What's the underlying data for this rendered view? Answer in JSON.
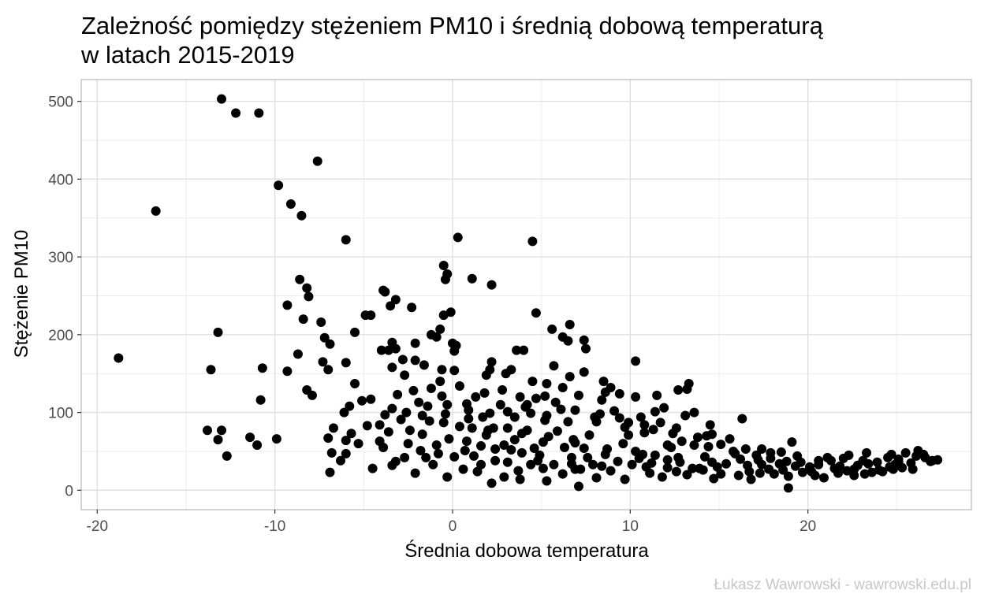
{
  "chart_data": {
    "type": "scatter",
    "title": "Zależność pomiędzy stężeniem PM10 i średnią dobową temperaturą",
    "title_line2": "w latach 2015-2019",
    "xlabel": "Średnia dobowa temperatura",
    "ylabel": "Stężenie PM10",
    "caption": "Łukasz Wawrowski - wawrowski.edu.pl",
    "xlim": [
      -20.9,
      29.2
    ],
    "ylim": [
      -25,
      528
    ],
    "x_ticks": [
      -20,
      -10,
      0,
      10,
      20
    ],
    "x_tick_labels": [
      "-20",
      "-10",
      "0",
      "10",
      "20"
    ],
    "y_ticks": [
      0,
      100,
      200,
      300,
      400,
      500
    ],
    "y_tick_labels": [
      "0",
      "100",
      "200",
      "300",
      "400",
      "500"
    ],
    "grid": true,
    "point_color": "#000000",
    "points": [
      [
        -13,
        503
      ],
      [
        -12.2,
        485
      ],
      [
        -10.9,
        485
      ],
      [
        -7.6,
        423
      ],
      [
        -16.7,
        359
      ],
      [
        -9.8,
        392
      ],
      [
        -9.1,
        368
      ],
      [
        -8.5,
        353
      ],
      [
        -6,
        322
      ],
      [
        -18.8,
        170
      ],
      [
        -13.2,
        203
      ],
      [
        -13.6,
        155
      ],
      [
        -10.7,
        157
      ],
      [
        -10.8,
        116
      ],
      [
        -13.8,
        77
      ],
      [
        -13,
        77
      ],
      [
        -13.2,
        65
      ],
      [
        -11.4,
        68
      ],
      [
        -11,
        58
      ],
      [
        -12.7,
        44
      ],
      [
        -9.9,
        66
      ],
      [
        -9.3,
        238
      ],
      [
        -8.6,
        271
      ],
      [
        -8.2,
        260
      ],
      [
        -8.1,
        249
      ],
      [
        -8.4,
        220
      ],
      [
        -8.7,
        175
      ],
      [
        -9.3,
        153
      ],
      [
        -8.2,
        129
      ],
      [
        -7.9,
        122
      ],
      [
        -7.4,
        216
      ],
      [
        -7.2,
        196
      ],
      [
        -6.9,
        188
      ],
      [
        -7.3,
        165
      ],
      [
        -7,
        155
      ],
      [
        -5.5,
        203
      ],
      [
        -6,
        164
      ],
      [
        -5.5,
        137
      ],
      [
        -7,
        67
      ],
      [
        -6.7,
        80
      ],
      [
        -6.8,
        48
      ],
      [
        -6.9,
        23
      ],
      [
        -5.8,
        108
      ],
      [
        -6.1,
        100
      ],
      [
        -6,
        64
      ],
      [
        -6,
        47
      ],
      [
        -6.3,
        38
      ],
      [
        -5.1,
        115
      ],
      [
        -4.6,
        117
      ],
      [
        -4.9,
        225
      ],
      [
        -4.6,
        225
      ],
      [
        -3.9,
        257
      ],
      [
        -3.8,
        255
      ],
      [
        -3.2,
        245
      ],
      [
        -3.5,
        237
      ],
      [
        -2.3,
        235
      ],
      [
        -2.1,
        189
      ],
      [
        -3.4,
        190
      ],
      [
        -4,
        180
      ],
      [
        -3.6,
        180
      ],
      [
        -3.2,
        182
      ],
      [
        -2.8,
        168
      ],
      [
        -3.4,
        158
      ],
      [
        -2.1,
        167
      ],
      [
        -1.6,
        161
      ],
      [
        -2.7,
        148
      ],
      [
        -3.1,
        123
      ],
      [
        -3.4,
        105
      ],
      [
        -3.8,
        97
      ],
      [
        -3.6,
        75
      ],
      [
        -4.1,
        63
      ],
      [
        -3.4,
        32
      ],
      [
        -3.2,
        37
      ],
      [
        -4.5,
        28
      ],
      [
        -4.8,
        83
      ],
      [
        -5.7,
        73
      ],
      [
        -2.5,
        60
      ],
      [
        -2.7,
        42
      ],
      [
        -2.1,
        22
      ],
      [
        0.3,
        325
      ],
      [
        -0.5,
        289
      ],
      [
        -0.3,
        278
      ],
      [
        -0.4,
        271
      ],
      [
        -0.1,
        229
      ],
      [
        -0.5,
        225
      ],
      [
        -0.7,
        207
      ],
      [
        -1.2,
        200
      ],
      [
        0,
        189
      ],
      [
        0.2,
        186
      ],
      [
        0.1,
        179
      ],
      [
        -0.9,
        197
      ],
      [
        -0.6,
        155
      ],
      [
        0.1,
        154
      ],
      [
        1.1,
        272
      ],
      [
        2.2,
        264
      ],
      [
        4.5,
        320
      ],
      [
        4.7,
        228
      ],
      [
        5.6,
        207
      ],
      [
        6.2,
        197
      ],
      [
        6.5,
        192
      ],
      [
        6.6,
        213
      ],
      [
        7.5,
        182
      ],
      [
        7.4,
        193
      ],
      [
        7.4,
        152
      ],
      [
        3.6,
        180
      ],
      [
        4,
        180
      ],
      [
        3.3,
        155
      ],
      [
        3,
        150
      ],
      [
        4.5,
        140
      ],
      [
        2.2,
        165
      ],
      [
        2.1,
        155
      ],
      [
        3.8,
        120
      ],
      [
        4.2,
        110
      ],
      [
        3.1,
        80
      ],
      [
        1.1,
        80
      ],
      [
        6.2,
        132
      ],
      [
        6.6,
        146
      ],
      [
        5.7,
        160
      ],
      [
        5.2,
        121
      ],
      [
        8.5,
        140
      ],
      [
        8.6,
        126
      ],
      [
        8.9,
        132
      ],
      [
        9.4,
        124
      ],
      [
        10.3,
        166
      ],
      [
        10.3,
        120
      ],
      [
        11.5,
        122
      ],
      [
        12.7,
        129
      ],
      [
        13.3,
        137
      ],
      [
        13.2,
        130
      ],
      [
        11.4,
        101
      ],
      [
        11.9,
        106
      ],
      [
        13.6,
        100
      ],
      [
        13.1,
        96
      ],
      [
        14.5,
        84
      ],
      [
        14.6,
        72
      ],
      [
        16.3,
        92
      ],
      [
        17.4,
        53
      ],
      [
        19.1,
        62
      ],
      [
        17.9,
        41
      ],
      [
        18.9,
        3
      ],
      [
        20.6,
        38
      ],
      [
        22,
        41
      ],
      [
        23.3,
        48
      ],
      [
        24,
        26
      ],
      [
        25.1,
        37
      ],
      [
        25.5,
        48
      ],
      [
        26.2,
        51
      ],
      [
        27.3,
        39
      ],
      [
        27,
        38
      ],
      [
        26.5,
        46
      ],
      [
        25.9,
        27
      ],
      [
        7.1,
        5
      ],
      [
        6.1,
        104
      ],
      [
        5.3,
        96
      ],
      [
        2,
        77
      ],
      [
        0.8,
        63
      ],
      [
        3.9,
        48
      ],
      [
        1.6,
        33
      ],
      [
        -0.8,
        47
      ],
      [
        8,
        94
      ],
      [
        9.7,
        81
      ],
      [
        10.8,
        74
      ],
      [
        12.1,
        58
      ],
      [
        15.8,
        50
      ],
      [
        14.2,
        43
      ],
      [
        20.1,
        29
      ],
      [
        22.8,
        32
      ],
      [
        17.3,
        22
      ],
      [
        12.3,
        55
      ],
      [
        12.6,
        24
      ],
      [
        5.2,
        90
      ],
      [
        4.6,
        54
      ],
      [
        6.8,
        65
      ],
      [
        3.1,
        36
      ],
      [
        9.6,
        60
      ],
      [
        -1.3,
        89
      ],
      [
        -1.4,
        108
      ],
      [
        -1.7,
        72
      ],
      [
        -2.9,
        91
      ],
      [
        1.9,
        71
      ],
      [
        1.4,
        24
      ],
      [
        2.9,
        17
      ],
      [
        0.9,
        103
      ],
      [
        4.4,
        99
      ],
      [
        7.6,
        42
      ],
      [
        6.7,
        42
      ],
      [
        11.2,
        35
      ],
      [
        13.9,
        28
      ],
      [
        10.3,
        50
      ],
      [
        16.6,
        32
      ],
      [
        18.4,
        34
      ],
      [
        19.7,
        23
      ],
      [
        21.5,
        28
      ],
      [
        15.1,
        21
      ],
      [
        23.9,
        36
      ],
      [
        24.6,
        30
      ],
      [
        6.9,
        27
      ],
      [
        5.7,
        33
      ],
      [
        3.5,
        65
      ],
      [
        1.2,
        44
      ],
      [
        0.6,
        27
      ],
      [
        -0.2,
        66
      ],
      [
        -0.3,
        110
      ],
      [
        -0.7,
        140
      ],
      [
        1.8,
        125
      ],
      [
        2.7,
        110
      ],
      [
        3.5,
        94
      ],
      [
        4.2,
        77
      ],
      [
        5.9,
        76
      ],
      [
        7.4,
        54
      ],
      [
        8.6,
        46
      ],
      [
        9.3,
        37
      ],
      [
        10.9,
        30
      ],
      [
        11.4,
        45
      ],
      [
        12.8,
        36
      ],
      [
        14.9,
        30
      ],
      [
        13.6,
        58
      ],
      [
        16.2,
        40
      ],
      [
        17.8,
        27
      ],
      [
        19.3,
        31
      ],
      [
        20.4,
        19
      ],
      [
        22.2,
        25
      ],
      [
        23.6,
        23
      ],
      [
        24.9,
        33
      ],
      [
        26.1,
        44
      ],
      [
        25.3,
        29
      ],
      [
        21.1,
        42
      ],
      [
        18.5,
        49
      ],
      [
        17.1,
        45
      ],
      [
        15.6,
        66
      ],
      [
        14.3,
        70
      ],
      [
        12.6,
        80
      ],
      [
        11.7,
        87
      ],
      [
        10.6,
        94
      ],
      [
        9.1,
        102
      ],
      [
        8.4,
        116
      ],
      [
        7.7,
        71
      ],
      [
        6.3,
        55
      ],
      [
        5.1,
        62
      ],
      [
        4.4,
        33
      ],
      [
        3.7,
        25
      ],
      [
        2.4,
        53
      ],
      [
        1.7,
        94
      ],
      [
        0.4,
        82
      ],
      [
        -0.9,
        58
      ],
      [
        -1.9,
        113
      ],
      [
        -2.4,
        77
      ],
      [
        -3.9,
        55
      ],
      [
        -5.3,
        60
      ],
      [
        -4.1,
        84
      ],
      [
        -1.1,
        33
      ],
      [
        -0.3,
        17
      ],
      [
        2.2,
        9
      ],
      [
        3.8,
        14
      ],
      [
        5.3,
        12
      ],
      [
        6.2,
        21
      ],
      [
        8.1,
        16
      ],
      [
        9.7,
        14
      ],
      [
        11.8,
        17
      ],
      [
        13.2,
        20
      ],
      [
        14.7,
        15
      ],
      [
        16.8,
        14
      ],
      [
        18.9,
        18
      ],
      [
        20.9,
        16
      ],
      [
        22.6,
        19
      ],
      [
        24.2,
        24
      ],
      [
        25.8,
        35
      ],
      [
        26.9,
        37
      ],
      [
        4.8,
        38
      ],
      [
        6.5,
        88
      ],
      [
        7.9,
        33
      ],
      [
        9.9,
        71
      ],
      [
        10.5,
        41
      ],
      [
        12.1,
        39
      ],
      [
        0.7,
        51
      ],
      [
        2.4,
        38
      ],
      [
        3.1,
        101
      ],
      [
        1.3,
        120
      ],
      [
        -1.5,
        42
      ],
      [
        -0.5,
        87
      ],
      [
        2.9,
        58
      ],
      [
        5.1,
        28
      ],
      [
        7.2,
        27
      ],
      [
        8.9,
        25
      ],
      [
        11.1,
        22
      ],
      [
        13.5,
        28
      ],
      [
        15.4,
        34
      ],
      [
        17.4,
        33
      ],
      [
        19.6,
        36
      ],
      [
        21.8,
        31
      ],
      [
        23.1,
        38
      ],
      [
        24.5,
        42
      ],
      [
        22.3,
        45
      ],
      [
        20.2,
        24
      ],
      [
        18.1,
        21
      ],
      [
        16.1,
        19
      ],
      [
        14.1,
        26
      ],
      [
        12.1,
        29
      ],
      [
        10.1,
        33
      ],
      [
        8.4,
        31
      ],
      [
        6.7,
        34
      ],
      [
        4.9,
        45
      ],
      [
        3.3,
        52
      ],
      [
        1.6,
        57
      ],
      [
        0.1,
        43
      ],
      [
        -1.8,
        51
      ],
      [
        -2.6,
        100
      ],
      [
        1.9,
        148
      ],
      [
        0.4,
        134
      ],
      [
        -0.6,
        121
      ],
      [
        2.8,
        129
      ],
      [
        4.1,
        107
      ],
      [
        5.8,
        113
      ],
      [
        6.9,
        103
      ],
      [
        8.1,
        88
      ],
      [
        9.4,
        93
      ],
      [
        10.8,
        84
      ],
      [
        12.4,
        73
      ],
      [
        13.8,
        68
      ],
      [
        15.1,
        59
      ],
      [
        16.5,
        53
      ],
      [
        17.9,
        48
      ],
      [
        19.4,
        44
      ],
      [
        21.3,
        38
      ],
      [
        23.4,
        34
      ],
      [
        25.1,
        40
      ],
      [
        26.6,
        42
      ],
      [
        24.7,
        46
      ],
      [
        22.6,
        27
      ],
      [
        20.6,
        33
      ],
      [
        18.6,
        26
      ],
      [
        16.7,
        24
      ],
      [
        14.6,
        36
      ],
      [
        12.7,
        42
      ],
      [
        10.7,
        46
      ],
      [
        8.7,
        53
      ],
      [
        6.9,
        61
      ],
      [
        5.4,
        69
      ],
      [
        3.9,
        73
      ],
      [
        2.3,
        80
      ],
      [
        0.9,
        92
      ],
      [
        -0.4,
        98
      ],
      [
        -1.7,
        96
      ],
      [
        -2.2,
        128
      ],
      [
        -1.2,
        131
      ],
      [
        0.8,
        111
      ],
      [
        2.1,
        99
      ],
      [
        4.7,
        118
      ],
      [
        5.3,
        137
      ],
      [
        7.1,
        122
      ],
      [
        8.3,
        98
      ],
      [
        9.9,
        87
      ],
      [
        11.3,
        78
      ],
      [
        12.9,
        63
      ],
      [
        14.4,
        56
      ],
      [
        15.9,
        47
      ],
      [
        17.2,
        39
      ],
      [
        18.8,
        37
      ],
      [
        20.1,
        30
      ],
      [
        21.7,
        22
      ],
      [
        23.2,
        21
      ],
      [
        24.8,
        27
      ]
    ]
  }
}
